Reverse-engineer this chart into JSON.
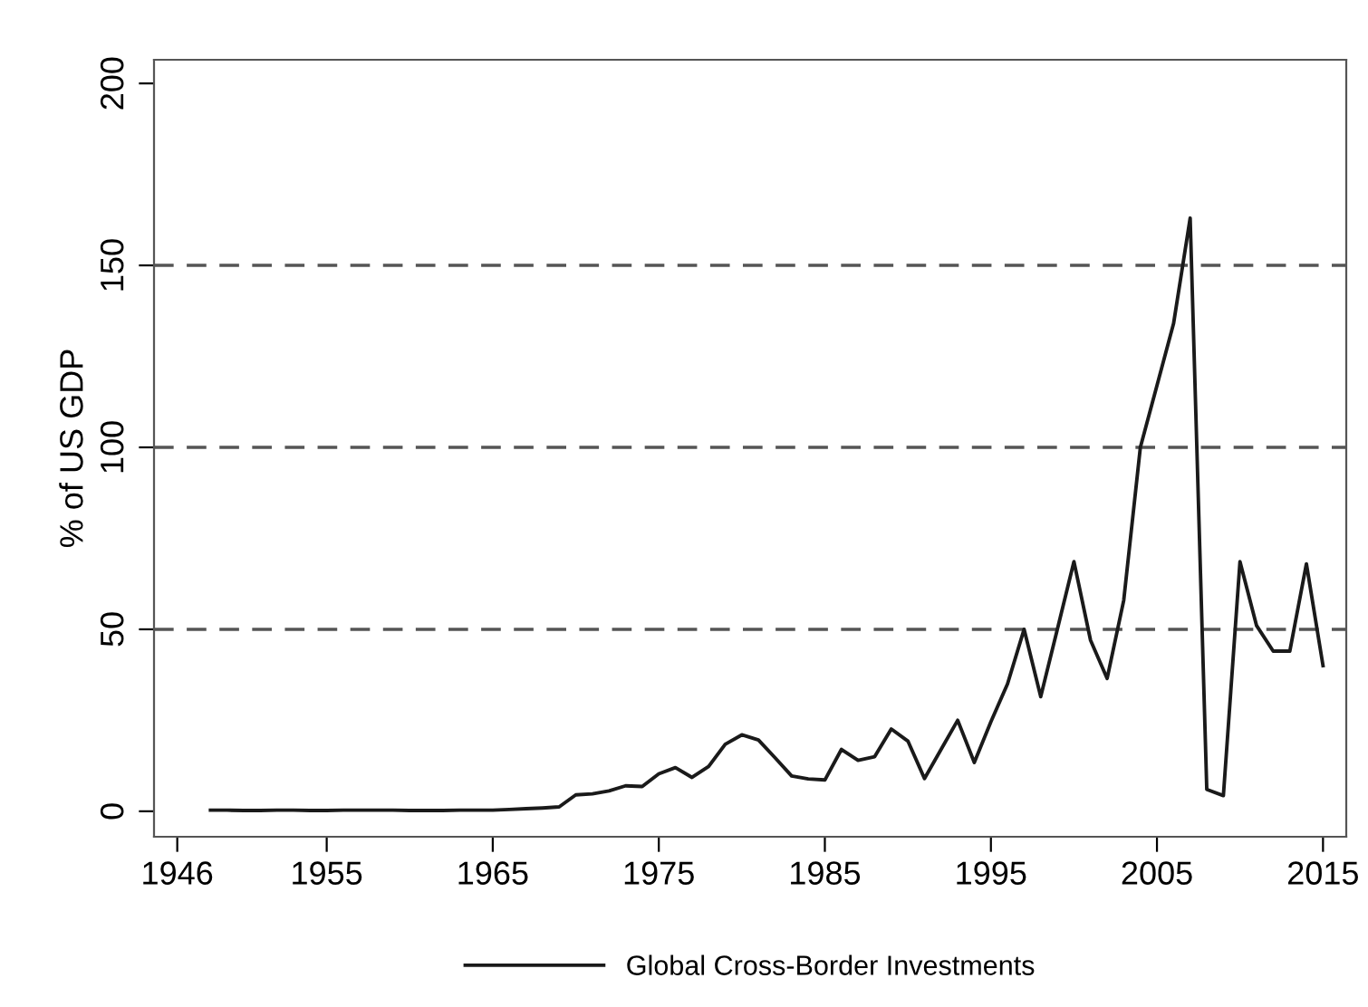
{
  "chart_data": {
    "type": "line",
    "ylabel": "% of US GDP",
    "legend": "bottom",
    "marker": "none",
    "line_style": "solid",
    "x": [
      1948,
      1949,
      1950,
      1951,
      1952,
      1953,
      1954,
      1955,
      1956,
      1957,
      1958,
      1959,
      1960,
      1961,
      1962,
      1963,
      1964,
      1965,
      1966,
      1967,
      1968,
      1969,
      1970,
      1971,
      1972,
      1973,
      1974,
      1975,
      1976,
      1977,
      1978,
      1979,
      1980,
      1981,
      1982,
      1983,
      1984,
      1985,
      1986,
      1987,
      1988,
      1989,
      1990,
      1991,
      1992,
      1993,
      1994,
      1995,
      1996,
      1997,
      1998,
      1999,
      2000,
      2001,
      2002,
      2003,
      2004,
      2005,
      2006,
      2007,
      2008,
      2009,
      2010,
      2011,
      2012,
      2013,
      2014,
      2015
    ],
    "series": [
      {
        "name": "Global Cross-Border Investments",
        "color": "#1a1a1a",
        "values": [
          0.3,
          0.3,
          0.2,
          0.2,
          0.3,
          0.3,
          0.2,
          0.2,
          0.3,
          0.3,
          0.3,
          0.3,
          0.2,
          0.2,
          0.2,
          0.3,
          0.3,
          0.3,
          0.5,
          0.7,
          0.9,
          1.2,
          4.5,
          4.8,
          5.6,
          7,
          6.8,
          10.3,
          12,
          9.3,
          12.3,
          18.4,
          21,
          19.6,
          14.7,
          9.7,
          8.9,
          8.6,
          17,
          14,
          15,
          22.6,
          19.3,
          9,
          17,
          25,
          13.4,
          24.6,
          35,
          50,
          31.5,
          50,
          68.6,
          47,
          36.5,
          58,
          100,
          117,
          134,
          163,
          6,
          4.3,
          68.6,
          51,
          44,
          44,
          68,
          40
        ]
      }
    ],
    "xlim": [
      1944.6,
      2016.4
    ],
    "xticks": [
      1946,
      1955,
      1965,
      1975,
      1985,
      1995,
      2005,
      2015
    ],
    "ylim": [
      -7,
      206.5
    ],
    "yticks": [
      0,
      50,
      100,
      150,
      200
    ],
    "ref_lines": [
      {
        "axis": "y",
        "value": 50,
        "line_style": "dashed",
        "color": "#555555"
      },
      {
        "axis": "y",
        "value": 100,
        "line_style": "dashed",
        "color": "#555555"
      },
      {
        "axis": "y",
        "value": 150,
        "line_style": "dashed",
        "color": "#555555"
      }
    ]
  }
}
